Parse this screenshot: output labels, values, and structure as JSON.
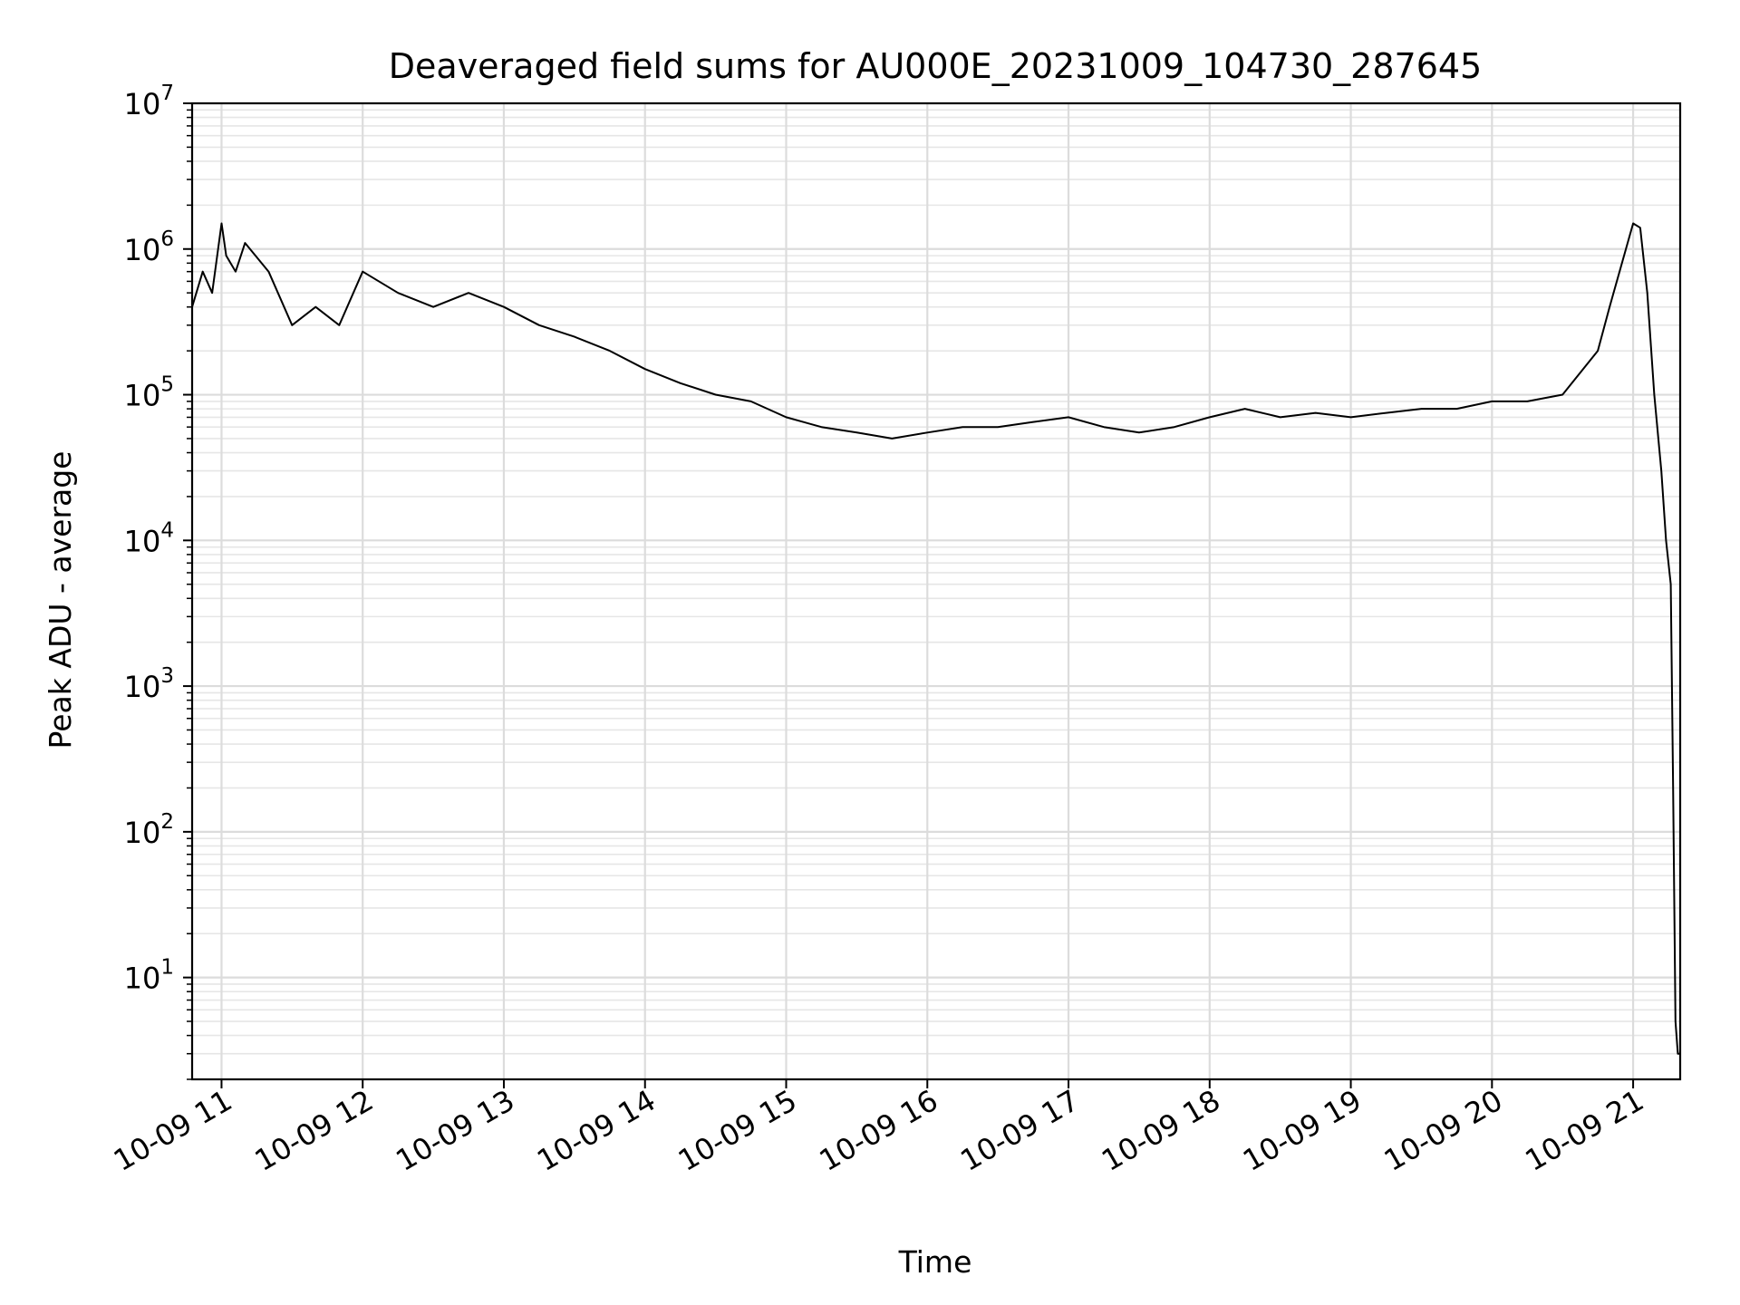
{
  "chart_data": {
    "type": "line",
    "title": "Deaveraged field sums for AU000E_20231009_104730_287645",
    "xlabel": "Time",
    "ylabel": "Peak ADU - average",
    "yscale": "log",
    "ylim": [
      2,
      10000000
    ],
    "xlim": [
      "2023-10-09 10:47:30",
      "2023-10-09 21:20:00"
    ],
    "grid": "major and minor",
    "line_color": "#000000",
    "x_ticks": [
      {
        "x": "2023-10-09 11:00",
        "label": "10-09 11"
      },
      {
        "x": "2023-10-09 12:00",
        "label": "10-09 12"
      },
      {
        "x": "2023-10-09 13:00",
        "label": "10-09 13"
      },
      {
        "x": "2023-10-09 14:00",
        "label": "10-09 14"
      },
      {
        "x": "2023-10-09 15:00",
        "label": "10-09 15"
      },
      {
        "x": "2023-10-09 16:00",
        "label": "10-09 16"
      },
      {
        "x": "2023-10-09 17:00",
        "label": "10-09 17"
      },
      {
        "x": "2023-10-09 18:00",
        "label": "10-09 18"
      },
      {
        "x": "2023-10-09 19:00",
        "label": "10-09 19"
      },
      {
        "x": "2023-10-09 20:00",
        "label": "10-09 20"
      },
      {
        "x": "2023-10-09 21:00",
        "label": "10-09 21"
      }
    ],
    "y_ticks": [
      {
        "y": 10,
        "base": "10",
        "exp": "1"
      },
      {
        "y": 100,
        "base": "10",
        "exp": "2"
      },
      {
        "y": 1000,
        "base": "10",
        "exp": "3"
      },
      {
        "y": 10000,
        "base": "10",
        "exp": "4"
      },
      {
        "y": 100000,
        "base": "10",
        "exp": "5"
      },
      {
        "y": 1000000,
        "base": "10",
        "exp": "6"
      },
      {
        "y": 10000000,
        "base": "10",
        "exp": "7"
      }
    ],
    "series": [
      {
        "x": [
          "2023-10-09 10:47:30",
          "2023-10-09 10:52",
          "2023-10-09 10:56",
          "2023-10-09 11:00",
          "2023-10-09 11:02",
          "2023-10-09 11:06",
          "2023-10-09 11:10",
          "2023-10-09 11:20",
          "2023-10-09 11:30",
          "2023-10-09 11:40",
          "2023-10-09 11:50",
          "2023-10-09 12:00",
          "2023-10-09 12:15",
          "2023-10-09 12:30",
          "2023-10-09 12:45",
          "2023-10-09 13:00",
          "2023-10-09 13:15",
          "2023-10-09 13:30",
          "2023-10-09 13:45",
          "2023-10-09 14:00",
          "2023-10-09 14:15",
          "2023-10-09 14:30",
          "2023-10-09 14:45",
          "2023-10-09 15:00",
          "2023-10-09 15:15",
          "2023-10-09 15:30",
          "2023-10-09 15:45",
          "2023-10-09 16:00",
          "2023-10-09 16:15",
          "2023-10-09 16:30",
          "2023-10-09 16:45",
          "2023-10-09 17:00",
          "2023-10-09 17:15",
          "2023-10-09 17:30",
          "2023-10-09 17:45",
          "2023-10-09 18:00",
          "2023-10-09 18:15",
          "2023-10-09 18:30",
          "2023-10-09 18:45",
          "2023-10-09 19:00",
          "2023-10-09 19:15",
          "2023-10-09 19:30",
          "2023-10-09 19:45",
          "2023-10-09 20:00",
          "2023-10-09 20:15",
          "2023-10-09 20:30",
          "2023-10-09 20:45",
          "2023-10-09 20:50",
          "2023-10-09 21:00",
          "2023-10-09 21:03",
          "2023-10-09 21:06",
          "2023-10-09 21:09",
          "2023-10-09 21:12",
          "2023-10-09 21:14",
          "2023-10-09 21:16",
          "2023-10-09 21:17",
          "2023-10-09 21:18",
          "2023-10-09 21:19",
          "2023-10-09 21:20"
        ],
        "y": [
          400000,
          700000,
          500000,
          1500000,
          900000,
          700000,
          1100000,
          700000,
          300000,
          400000,
          300000,
          700000,
          500000,
          400000,
          500000,
          400000,
          300000,
          250000,
          200000,
          150000,
          120000,
          100000,
          90000,
          70000,
          60000,
          55000,
          50000,
          55000,
          60000,
          60000,
          65000,
          70000,
          60000,
          55000,
          60000,
          70000,
          80000,
          70000,
          75000,
          70000,
          75000,
          80000,
          80000,
          90000,
          90000,
          100000,
          200000,
          400000,
          1500000,
          1400000,
          500000,
          100000,
          30000,
          10000,
          5000,
          200,
          5,
          3,
          3
        ]
      }
    ]
  }
}
